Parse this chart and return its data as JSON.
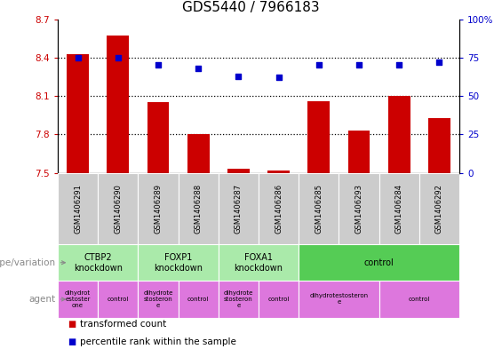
{
  "title": "GDS5440 / 7966183",
  "samples": [
    "GSM1406291",
    "GSM1406290",
    "GSM1406289",
    "GSM1406288",
    "GSM1406287",
    "GSM1406286",
    "GSM1406285",
    "GSM1406293",
    "GSM1406284",
    "GSM1406292"
  ],
  "transformed_counts": [
    8.43,
    8.57,
    8.05,
    7.8,
    7.53,
    7.52,
    8.06,
    7.83,
    8.1,
    7.93
  ],
  "percentile_ranks": [
    75,
    75,
    70,
    68,
    63,
    62,
    70,
    70,
    70,
    72
  ],
  "ylim": [
    7.5,
    8.7
  ],
  "y_ticks": [
    7.5,
    7.8,
    8.1,
    8.4,
    8.7
  ],
  "y2_ticks": [
    0,
    25,
    50,
    75,
    100
  ],
  "bar_color": "#cc0000",
  "dot_color": "#0000cc",
  "genotype_groups": [
    {
      "label": "CTBP2\nknockdown",
      "start": 0,
      "end": 2,
      "color": "#aaeaaa"
    },
    {
      "label": "FOXP1\nknockdown",
      "start": 2,
      "end": 4,
      "color": "#aaeaaa"
    },
    {
      "label": "FOXA1\nknockdown",
      "start": 4,
      "end": 6,
      "color": "#aaeaaa"
    },
    {
      "label": "control",
      "start": 6,
      "end": 10,
      "color": "#55cc55"
    }
  ],
  "agent_groups": [
    {
      "label": "dihydrot\nestoster\none",
      "start": 0,
      "end": 1,
      "color": "#dd77dd"
    },
    {
      "label": "control",
      "start": 1,
      "end": 2,
      "color": "#dd77dd"
    },
    {
      "label": "dihydrote\nstosteron\ne",
      "start": 2,
      "end": 3,
      "color": "#dd77dd"
    },
    {
      "label": "control",
      "start": 3,
      "end": 4,
      "color": "#dd77dd"
    },
    {
      "label": "dihydrote\nstosteron\ne",
      "start": 4,
      "end": 5,
      "color": "#dd77dd"
    },
    {
      "label": "control",
      "start": 5,
      "end": 6,
      "color": "#dd77dd"
    },
    {
      "label": "dihydrotestosteron\ne",
      "start": 6,
      "end": 8,
      "color": "#dd77dd"
    },
    {
      "label": "control",
      "start": 8,
      "end": 10,
      "color": "#dd77dd"
    }
  ],
  "left_label_genotype": "genotype/variation",
  "left_label_agent": "agent",
  "legend_bar_label": "transformed count",
  "legend_dot_label": "percentile rank within the sample",
  "sample_bg_color": "#cccccc",
  "title_fontsize": 11,
  "tick_fontsize": 7.5,
  "label_fontsize": 8,
  "dotted_lines": [
    7.8,
    8.1,
    8.4
  ]
}
